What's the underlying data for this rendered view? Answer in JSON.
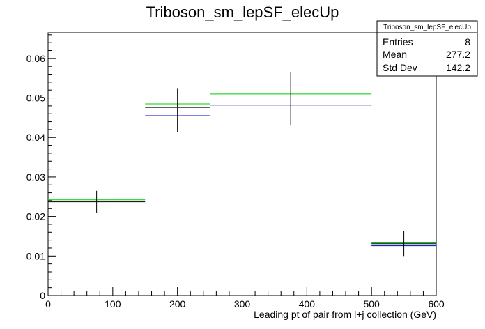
{
  "chart_data": {
    "type": "histogram",
    "title": "Triboson_sm_lepSF_elecUp",
    "xlabel": "Leading pt of pair from l+j collection (GeV)",
    "ylabel": "",
    "xlim": [
      0,
      600
    ],
    "ylim": [
      0,
      0.0665
    ],
    "x_ticks": [
      0,
      100,
      200,
      300,
      400,
      500,
      600
    ],
    "x_tick_labels": [
      "0",
      "100",
      "200",
      "300",
      "400",
      "500",
      "600"
    ],
    "y_ticks": [
      0,
      0.01,
      0.02,
      0.03,
      0.04,
      0.05,
      0.06
    ],
    "y_tick_labels": [
      "0",
      "0.01",
      "0.02",
      "0.03",
      "0.04",
      "0.05",
      "0.06"
    ],
    "bin_edges": [
      0,
      150,
      250,
      500,
      600
    ],
    "bin_centers": [
      75,
      200,
      375,
      550
    ],
    "series": [
      {
        "values": [
          0.0242,
          0.0485,
          0.051,
          0.0135
        ],
        "color": "#00cc00"
      },
      {
        "values": [
          0.0237,
          0.0476,
          0.05,
          0.0131
        ],
        "color": "#000000"
      },
      {
        "values": [
          0.0232,
          0.0455,
          0.0482,
          0.0126
        ],
        "color": "#0000cc"
      }
    ],
    "error_bars": {
      "color": "#000000",
      "low": [
        0.021,
        0.0413,
        0.043,
        0.01
      ],
      "high": [
        0.0265,
        0.0525,
        0.0565,
        0.0163
      ]
    },
    "stats_box": {
      "title": "Triboson_sm_lepSF_elecUp",
      "rows": [
        {
          "label": "Entries",
          "value": "8"
        },
        {
          "label": "Mean",
          "value": "277.2"
        },
        {
          "label": "Std Dev",
          "value": "142.2"
        }
      ]
    },
    "grid": false
  }
}
